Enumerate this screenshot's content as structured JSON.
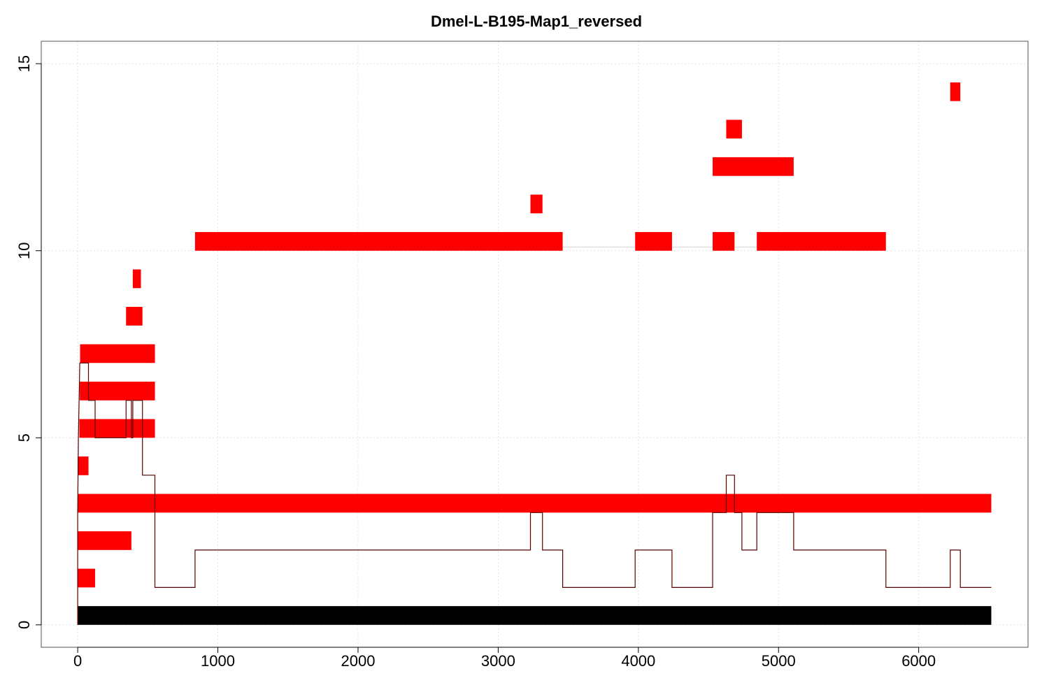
{
  "chart_data": {
    "type": "bar",
    "title": "Dmel-L-B195-Map1_reversed",
    "xlabel": "",
    "ylabel": "",
    "xlim": [
      -260,
      6780
    ],
    "ylim": [
      -0.6,
      15.6
    ],
    "x_ticks": [
      0,
      1000,
      2000,
      3000,
      4000,
      5000,
      6000
    ],
    "y_ticks": [
      0,
      5,
      10,
      15
    ],
    "grid": true,
    "colors": {
      "segment": "#ff0000",
      "reference": "#000000",
      "coverage": "#5a0000",
      "grid": "#e3e3e3",
      "link": "#d3d3d3"
    },
    "reference": {
      "x0": 0,
      "x1": 6518,
      "y0": 0,
      "y1": 0.5
    },
    "segments": [
      {
        "x0": 0,
        "x1": 124,
        "y": 1.25
      },
      {
        "x0": 0,
        "x1": 383,
        "y": 2.25
      },
      {
        "x0": 0,
        "x1": 6518,
        "y": 3.25
      },
      {
        "x0": 0,
        "x1": 77,
        "y": 4.25
      },
      {
        "x0": 12,
        "x1": 551,
        "y": 5.25
      },
      {
        "x0": 15,
        "x1": 551,
        "y": 6.25
      },
      {
        "x0": 17,
        "x1": 551,
        "y": 7.25
      },
      {
        "x0": 345,
        "x1": 462,
        "y": 8.25
      },
      {
        "x0": 393,
        "x1": 451,
        "y": 9.25
      },
      {
        "x0": 837,
        "x1": 3460,
        "y": 10.25
      },
      {
        "x0": 3977,
        "x1": 4240,
        "y": 10.25
      },
      {
        "x0": 4530,
        "x1": 4686,
        "y": 10.25
      },
      {
        "x0": 4845,
        "x1": 5766,
        "y": 10.25
      },
      {
        "x0": 3230,
        "x1": 3316,
        "y": 11.25
      },
      {
        "x0": 4530,
        "x1": 5108,
        "y": 12.25
      },
      {
        "x0": 4627,
        "x1": 4739,
        "y": 13.25
      },
      {
        "x0": 6225,
        "x1": 6297,
        "y": 14.25
      }
    ],
    "links": [
      {
        "x0": 3460,
        "x1": 3977,
        "y": 10.1
      },
      {
        "x0": 4240,
        "x1": 4530,
        "y": 10.1
      },
      {
        "x0": 4686,
        "x1": 4845,
        "y": 10.1
      }
    ],
    "coverage": [
      [
        0,
        0
      ],
      [
        0,
        3
      ],
      [
        5,
        5
      ],
      [
        15,
        7
      ],
      [
        77,
        7
      ],
      [
        77,
        6
      ],
      [
        124,
        6
      ],
      [
        124,
        5
      ],
      [
        345,
        5
      ],
      [
        345,
        6
      ],
      [
        383,
        6
      ],
      [
        383,
        5
      ],
      [
        393,
        5
      ],
      [
        393,
        6
      ],
      [
        462,
        6
      ],
      [
        462,
        4
      ],
      [
        551,
        4
      ],
      [
        551,
        1
      ],
      [
        837,
        1
      ],
      [
        837,
        2
      ],
      [
        3230,
        2
      ],
      [
        3230,
        3
      ],
      [
        3316,
        3
      ],
      [
        3316,
        2
      ],
      [
        3460,
        2
      ],
      [
        3460,
        1
      ],
      [
        3977,
        1
      ],
      [
        3977,
        2
      ],
      [
        4240,
        2
      ],
      [
        4240,
        1
      ],
      [
        4530,
        1
      ],
      [
        4530,
        3
      ],
      [
        4627,
        3
      ],
      [
        4627,
        4
      ],
      [
        4686,
        4
      ],
      [
        4686,
        3
      ],
      [
        4739,
        3
      ],
      [
        4739,
        2
      ],
      [
        4845,
        2
      ],
      [
        4845,
        3
      ],
      [
        5108,
        3
      ],
      [
        5108,
        2
      ],
      [
        5766,
        2
      ],
      [
        5766,
        1
      ],
      [
        6225,
        1
      ],
      [
        6225,
        2
      ],
      [
        6297,
        2
      ],
      [
        6297,
        1
      ],
      [
        6518,
        1
      ]
    ]
  }
}
